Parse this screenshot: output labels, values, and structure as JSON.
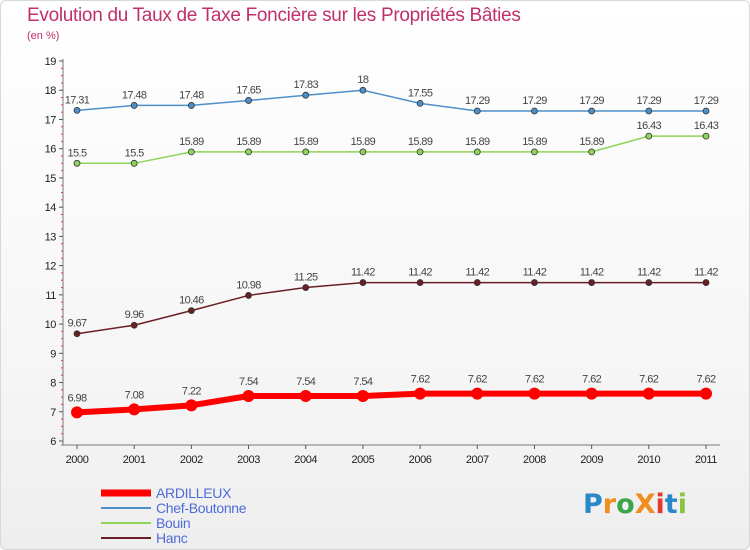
{
  "title": "Evolution du Taux de Taxe Foncière sur les Propriétés Bâties",
  "unit_label": "(en %)",
  "logo": {
    "text": "ProXiti",
    "colors": [
      "#2a88c8",
      "#f28c1e",
      "#3aa64b",
      "#f28c1e",
      "#e23a2f",
      "#2a88c8",
      "#8ac33f"
    ]
  },
  "chart_data": {
    "type": "line",
    "title": "Evolution du Taux de Taxe Foncière sur les Propriétés Bâties",
    "ylabel": "(en %)",
    "xlabel": "",
    "x": [
      "2000",
      "2001",
      "2002",
      "2003",
      "2004",
      "2005",
      "2006",
      "2007",
      "2008",
      "2009",
      "2010",
      "2011"
    ],
    "ylim": [
      6,
      19
    ],
    "yticks": [
      6,
      7,
      8,
      9,
      10,
      11,
      12,
      13,
      14,
      15,
      16,
      17,
      18,
      19
    ],
    "grid": false,
    "legend_position": "bottom-left",
    "series": [
      {
        "name": "ARDILLEUX",
        "color": "#ff0000",
        "emphasis": true,
        "values": [
          6.98,
          7.08,
          7.22,
          7.54,
          7.54,
          7.54,
          7.62,
          7.62,
          7.62,
          7.62,
          7.62,
          7.62
        ],
        "labels": [
          "6.98",
          "7.08",
          "7.22",
          "7.54",
          "7.54",
          "7.54",
          "7.62",
          "7.62",
          "7.62",
          "7.62",
          "7.62",
          "7.62"
        ]
      },
      {
        "name": "Chef-Boutonne",
        "color": "#4d8fc9",
        "emphasis": false,
        "values": [
          17.31,
          17.48,
          17.48,
          17.65,
          17.83,
          18,
          17.55,
          17.29,
          17.29,
          17.29,
          17.29,
          17.29
        ],
        "labels": [
          "17.31",
          "17.48",
          "17.48",
          "17.65",
          "17.83",
          "18",
          "17.55",
          "17.29",
          "17.29",
          "17.29",
          "17.29",
          "17.29"
        ]
      },
      {
        "name": "Bouin",
        "color": "#8fd45a",
        "emphasis": false,
        "values": [
          15.5,
          15.5,
          15.89,
          15.89,
          15.89,
          15.89,
          15.89,
          15.89,
          15.89,
          15.89,
          16.43,
          16.43
        ],
        "labels": [
          "15.5",
          "15.5",
          "15.89",
          "15.89",
          "15.89",
          "15.89",
          "15.89",
          "15.89",
          "15.89",
          "15.89",
          "16.43",
          "16.43"
        ]
      },
      {
        "name": "Hanc",
        "color": "#6b1f24",
        "emphasis": false,
        "values": [
          9.67,
          9.96,
          10.46,
          10.98,
          11.25,
          11.42,
          11.42,
          11.42,
          11.42,
          11.42,
          11.42,
          11.42
        ],
        "labels": [
          "9.67",
          "9.96",
          "10.46",
          "10.98",
          "11.25",
          "11.42",
          "11.42",
          "11.42",
          "11.42",
          "11.42",
          "11.42",
          "11.42"
        ]
      }
    ]
  }
}
